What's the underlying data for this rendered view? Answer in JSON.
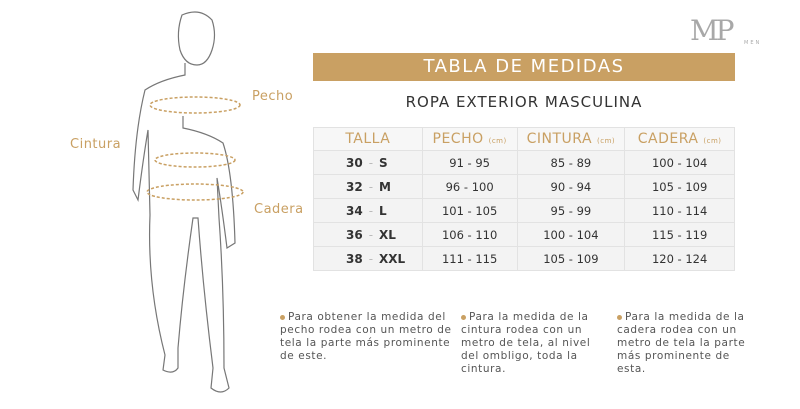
{
  "logo": {
    "text": "MP",
    "sub": "MEN"
  },
  "banner": "TABLA DE MEDIDAS",
  "subtitle": "ROPA EXTERIOR MASCULINA",
  "labels": {
    "pecho": "Pecho",
    "cintura": "Cintura",
    "cadera": "Cadera"
  },
  "table": {
    "headers": [
      {
        "label": "TALLA",
        "unit": ""
      },
      {
        "label": "PECHO",
        "unit": "(cm)"
      },
      {
        "label": "CINTURA",
        "unit": "(cm)"
      },
      {
        "label": "CADERA",
        "unit": "(cm)"
      }
    ],
    "rows": [
      {
        "num": "30",
        "sep": "-",
        "size": "S",
        "pecho": "91 - 95",
        "cintura": "85 -  89",
        "cadera": "100 - 104"
      },
      {
        "num": "32",
        "sep": "-",
        "size": "M",
        "pecho": "96 - 100",
        "cintura": "90 -  94",
        "cadera": "105 - 109"
      },
      {
        "num": "34",
        "sep": "-",
        "size": "L",
        "pecho": "101 - 105",
        "cintura": "95 - 99",
        "cadera": "110 - 114"
      },
      {
        "num": "36",
        "sep": "-",
        "size": "XL",
        "pecho": "106 - 110",
        "cintura": "100 - 104",
        "cadera": "115 - 119"
      },
      {
        "num": "38",
        "sep": "-",
        "size": "XXL",
        "pecho": "111 - 115",
        "cintura": "105 - 109",
        "cadera": "120 - 124"
      }
    ]
  },
  "notes": [
    "Para obtener la medida del pecho rodea con un metro de tela la parte más prominente de este.",
    "Para la medida de la cintura rodea con un metro de tela, al nivel del ombligo, toda la cintura.",
    "Para la medida de la cadera rodea con un metro de tela la parte más prominente de esta."
  ],
  "colors": {
    "accent": "#c9a063"
  }
}
